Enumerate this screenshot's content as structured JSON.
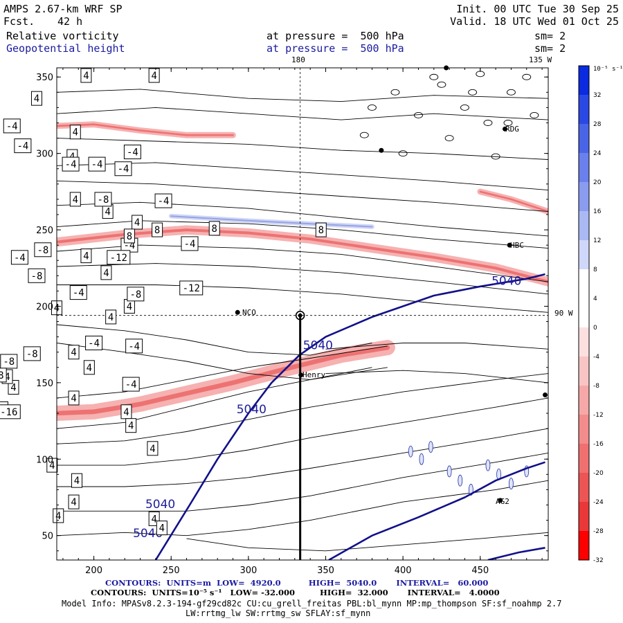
{
  "header": {
    "model": "AMPS 2.67-km WRF SP",
    "fcst_label": "Fcst.",
    "fcst_value": "42 h",
    "init": "Init. 00 UTC Tue 30 Sep 25",
    "valid": "Valid. 18 UTC Wed 01 Oct 25",
    "field1_name": "Relative vorticity",
    "field1_level": "at pressure =  500 hPa",
    "field1_sm": "sm= 2",
    "field2_name": "Geopotential height",
    "field2_level": "at pressure =  500 hPa",
    "field2_sm": "sm= 2"
  },
  "map_labels": {
    "meridian_180": "180",
    "meridian_135w": "135 W",
    "lat_90w": "90 W",
    "station_rdg": "RDG",
    "station_hbc": "HBC",
    "station_nco": "NCO",
    "station_henry": "Henry",
    "station_ag2": "AG2"
  },
  "colorbar": {
    "unit_label": "10⁻⁵ s⁻¹",
    "ticks": [
      "32",
      "28",
      "24",
      "20",
      "16",
      "12",
      "8",
      "4",
      "0",
      "-4",
      "-8",
      "-12",
      "-16",
      "-20",
      "-24",
      "-28",
      "-32"
    ],
    "colors": [
      "#0a2be0",
      "#2a48e4",
      "#4a64e8",
      "#6a80ec",
      "#8a9cf0",
      "#aab8f4",
      "#cfd8fa",
      "#ffffff",
      "#ffffff",
      "#fce0e0",
      "#f9c4c4",
      "#f6a8a8",
      "#f38c8c",
      "#f07070",
      "#ed5454",
      "#ea3838",
      "#ff0000"
    ]
  },
  "chart_data": {
    "type": "heatmap",
    "title": "Relative vorticity and Geopotential height at 500 hPa",
    "x_ticks": [
      "200",
      "250",
      "300",
      "350",
      "400",
      "450"
    ],
    "y_ticks": [
      "350",
      "300",
      "250",
      "200",
      "150",
      "100",
      "50"
    ],
    "xlim": [
      176,
      494
    ],
    "ylim": [
      34,
      356
    ],
    "height_contours": [
      {
        "label": "5040",
        "points": [
          [
            240,
            34
          ],
          [
            262,
            70
          ],
          [
            280,
            100
          ],
          [
            300,
            130
          ],
          [
            315,
            150
          ],
          [
            333,
            168
          ],
          [
            350,
            180
          ],
          [
            380,
            193
          ],
          [
            420,
            207
          ],
          [
            450,
            213
          ],
          [
            480,
            218
          ],
          [
            492,
            221
          ]
        ]
      },
      {
        "label": "5040",
        "points": [
          [
            352,
            34
          ],
          [
            380,
            50
          ],
          [
            410,
            62
          ],
          [
            440,
            75
          ],
          [
            460,
            86
          ],
          [
            480,
            94
          ],
          [
            492,
            98
          ]
        ]
      },
      {
        "label": "5040",
        "points": [
          [
            455,
            34
          ],
          [
            475,
            39
          ],
          [
            492,
            42
          ]
        ]
      }
    ],
    "height_contour_labels": [
      {
        "text": "5040",
        "x": 345,
        "y": 172
      },
      {
        "text": "5040",
        "x": 302,
        "y": 130
      },
      {
        "text": "5040",
        "x": 243,
        "y": 68
      },
      {
        "text": "5040",
        "x": 235,
        "y": 49
      },
      {
        "text": "5040",
        "x": 467,
        "y": 214
      }
    ],
    "vorticity_bands": [
      {
        "level": -8,
        "points": [
          [
            176,
            130
          ],
          [
            200,
            131
          ],
          [
            230,
            136
          ],
          [
            260,
            143
          ],
          [
            290,
            150
          ],
          [
            320,
            158
          ],
          [
            340,
            163
          ],
          [
            360,
            168
          ],
          [
            390,
            173
          ]
        ],
        "thickness": 10
      },
      {
        "level": -8,
        "points": [
          [
            176,
            242
          ],
          [
            220,
            247
          ],
          [
            260,
            250
          ],
          [
            300,
            248
          ],
          [
            340,
            244
          ],
          [
            380,
            238
          ],
          [
            420,
            232
          ],
          [
            460,
            225
          ],
          [
            494,
            216
          ]
        ],
        "thickness": 6
      },
      {
        "level": -8,
        "points": [
          [
            176,
            318
          ],
          [
            200,
            319
          ],
          [
            230,
            315
          ],
          [
            260,
            312
          ],
          [
            290,
            312
          ]
        ],
        "thickness": 4
      },
      {
        "level": -8,
        "points": [
          [
            450,
            275
          ],
          [
            470,
            270
          ],
          [
            494,
            262
          ]
        ],
        "thickness": 4
      },
      {
        "level": 8,
        "points": [
          [
            250,
            259
          ],
          [
            300,
            256
          ],
          [
            340,
            254
          ],
          [
            380,
            252
          ]
        ],
        "thickness": 3
      }
    ],
    "vorticity_labels": [
      {
        "text": "4",
        "x": 239,
        "y": 351
      },
      {
        "text": "4",
        "x": 163,
        "y": 336
      },
      {
        "text": "4",
        "x": 188,
        "y": 314
      },
      {
        "text": "4",
        "x": 186,
        "y": 298
      },
      {
        "text": "4",
        "x": 188,
        "y": 270
      },
      {
        "text": "4",
        "x": 209,
        "y": 262
      },
      {
        "text": "4",
        "x": 228,
        "y": 255
      },
      {
        "text": "4",
        "x": 195,
        "y": 233
      },
      {
        "text": "4",
        "x": 208,
        "y": 222
      },
      {
        "text": "4",
        "x": 223,
        "y": 200
      },
      {
        "text": "4",
        "x": 211,
        "y": 193
      },
      {
        "text": "4",
        "x": 176,
        "y": 199
      },
      {
        "text": "4",
        "x": 187,
        "y": 170
      },
      {
        "text": "4",
        "x": 197,
        "y": 160
      },
      {
        "text": "4",
        "x": 221,
        "y": 131
      },
      {
        "text": "4",
        "x": 238,
        "y": 107
      },
      {
        "text": "4",
        "x": 173,
        "y": 96
      },
      {
        "text": "4",
        "x": 189,
        "y": 86
      },
      {
        "text": "4",
        "x": 187,
        "y": 72
      },
      {
        "text": "4",
        "x": 177,
        "y": 63
      },
      {
        "text": "4",
        "x": 239,
        "y": 61
      },
      {
        "text": "4",
        "x": 244,
        "y": 55
      },
      {
        "text": "4",
        "x": 187,
        "y": 140
      },
      {
        "text": "4",
        "x": 148,
        "y": 147
      },
      {
        "text": "4",
        "x": 144,
        "y": 154
      },
      {
        "text": "4",
        "x": 195,
        "y": 351
      },
      {
        "text": "-4",
        "x": 147,
        "y": 318
      },
      {
        "text": "-4",
        "x": 154,
        "y": 305
      },
      {
        "text": "-4",
        "x": 225,
        "y": 301
      },
      {
        "text": "-4",
        "x": 185,
        "y": 293
      },
      {
        "text": "-4",
        "x": 202,
        "y": 293
      },
      {
        "text": "-4",
        "x": 190,
        "y": 209
      },
      {
        "text": "-4",
        "x": 223,
        "y": 240
      },
      {
        "text": "-4",
        "x": 200,
        "y": 176
      },
      {
        "text": "-4",
        "x": 226,
        "y": 174
      },
      {
        "text": "-4",
        "x": 133,
        "y": 242
      },
      {
        "text": "-4",
        "x": 119,
        "y": 233
      },
      {
        "text": "-4",
        "x": 245,
        "y": 269
      },
      {
        "text": "-4",
        "x": 219,
        "y": 290
      },
      {
        "text": "-4",
        "x": 152,
        "y": 232
      },
      {
        "text": "-4",
        "x": 262,
        "y": 241
      },
      {
        "text": "-8",
        "x": 127,
        "y": 305
      },
      {
        "text": "-8",
        "x": 167,
        "y": 237
      },
      {
        "text": "-8",
        "x": 160,
        "y": 169
      },
      {
        "text": "-8",
        "x": 145,
        "y": 164
      },
      {
        "text": "-8",
        "x": 138,
        "y": 155
      },
      {
        "text": "-8",
        "x": 102,
        "y": 106
      },
      {
        "text": "-8",
        "x": 163,
        "y": 220
      },
      {
        "text": "-8",
        "x": 227,
        "y": 208
      },
      {
        "text": "-8",
        "x": 206,
        "y": 270
      },
      {
        "text": "-12",
        "x": 128,
        "y": 128
      },
      {
        "text": "-12",
        "x": 216,
        "y": 232
      },
      {
        "text": "-12",
        "x": 137,
        "y": 133
      },
      {
        "text": "-12",
        "x": 263,
        "y": 212
      },
      {
        "text": "-16",
        "x": 145,
        "y": 131
      },
      {
        "text": "8",
        "x": 241,
        "y": 250
      },
      {
        "text": "8",
        "x": 278,
        "y": 251
      },
      {
        "text": "8",
        "x": 347,
        "y": 250
      },
      {
        "text": "8",
        "x": 223,
        "y": 246
      },
      {
        "text": "-4",
        "x": 224,
        "y": 149
      },
      {
        "text": "4",
        "x": 224,
        "y": 122
      }
    ]
  },
  "footer": {
    "line1": "CONTOURS:  UNITS=m  LOW=  4920.0          HIGH=  5040.0       INTERVAL=   60.000",
    "line2": "CONTOURS:  UNITS=10⁻⁵ s⁻¹   LOW= -32.000         HIGH=  32.000       INTERVAL=   4.0000",
    "line3": "Model Info: MPASv8.2.3-194-gf29cd82c CU:cu_grell_freitas PBL:bl_mynn MP:mp_thompson SF:sf_noahmp 2.7",
    "line4": "LW:rrtmg_lw SW:rrtmg_sw SFLAY:sf_mynn"
  }
}
